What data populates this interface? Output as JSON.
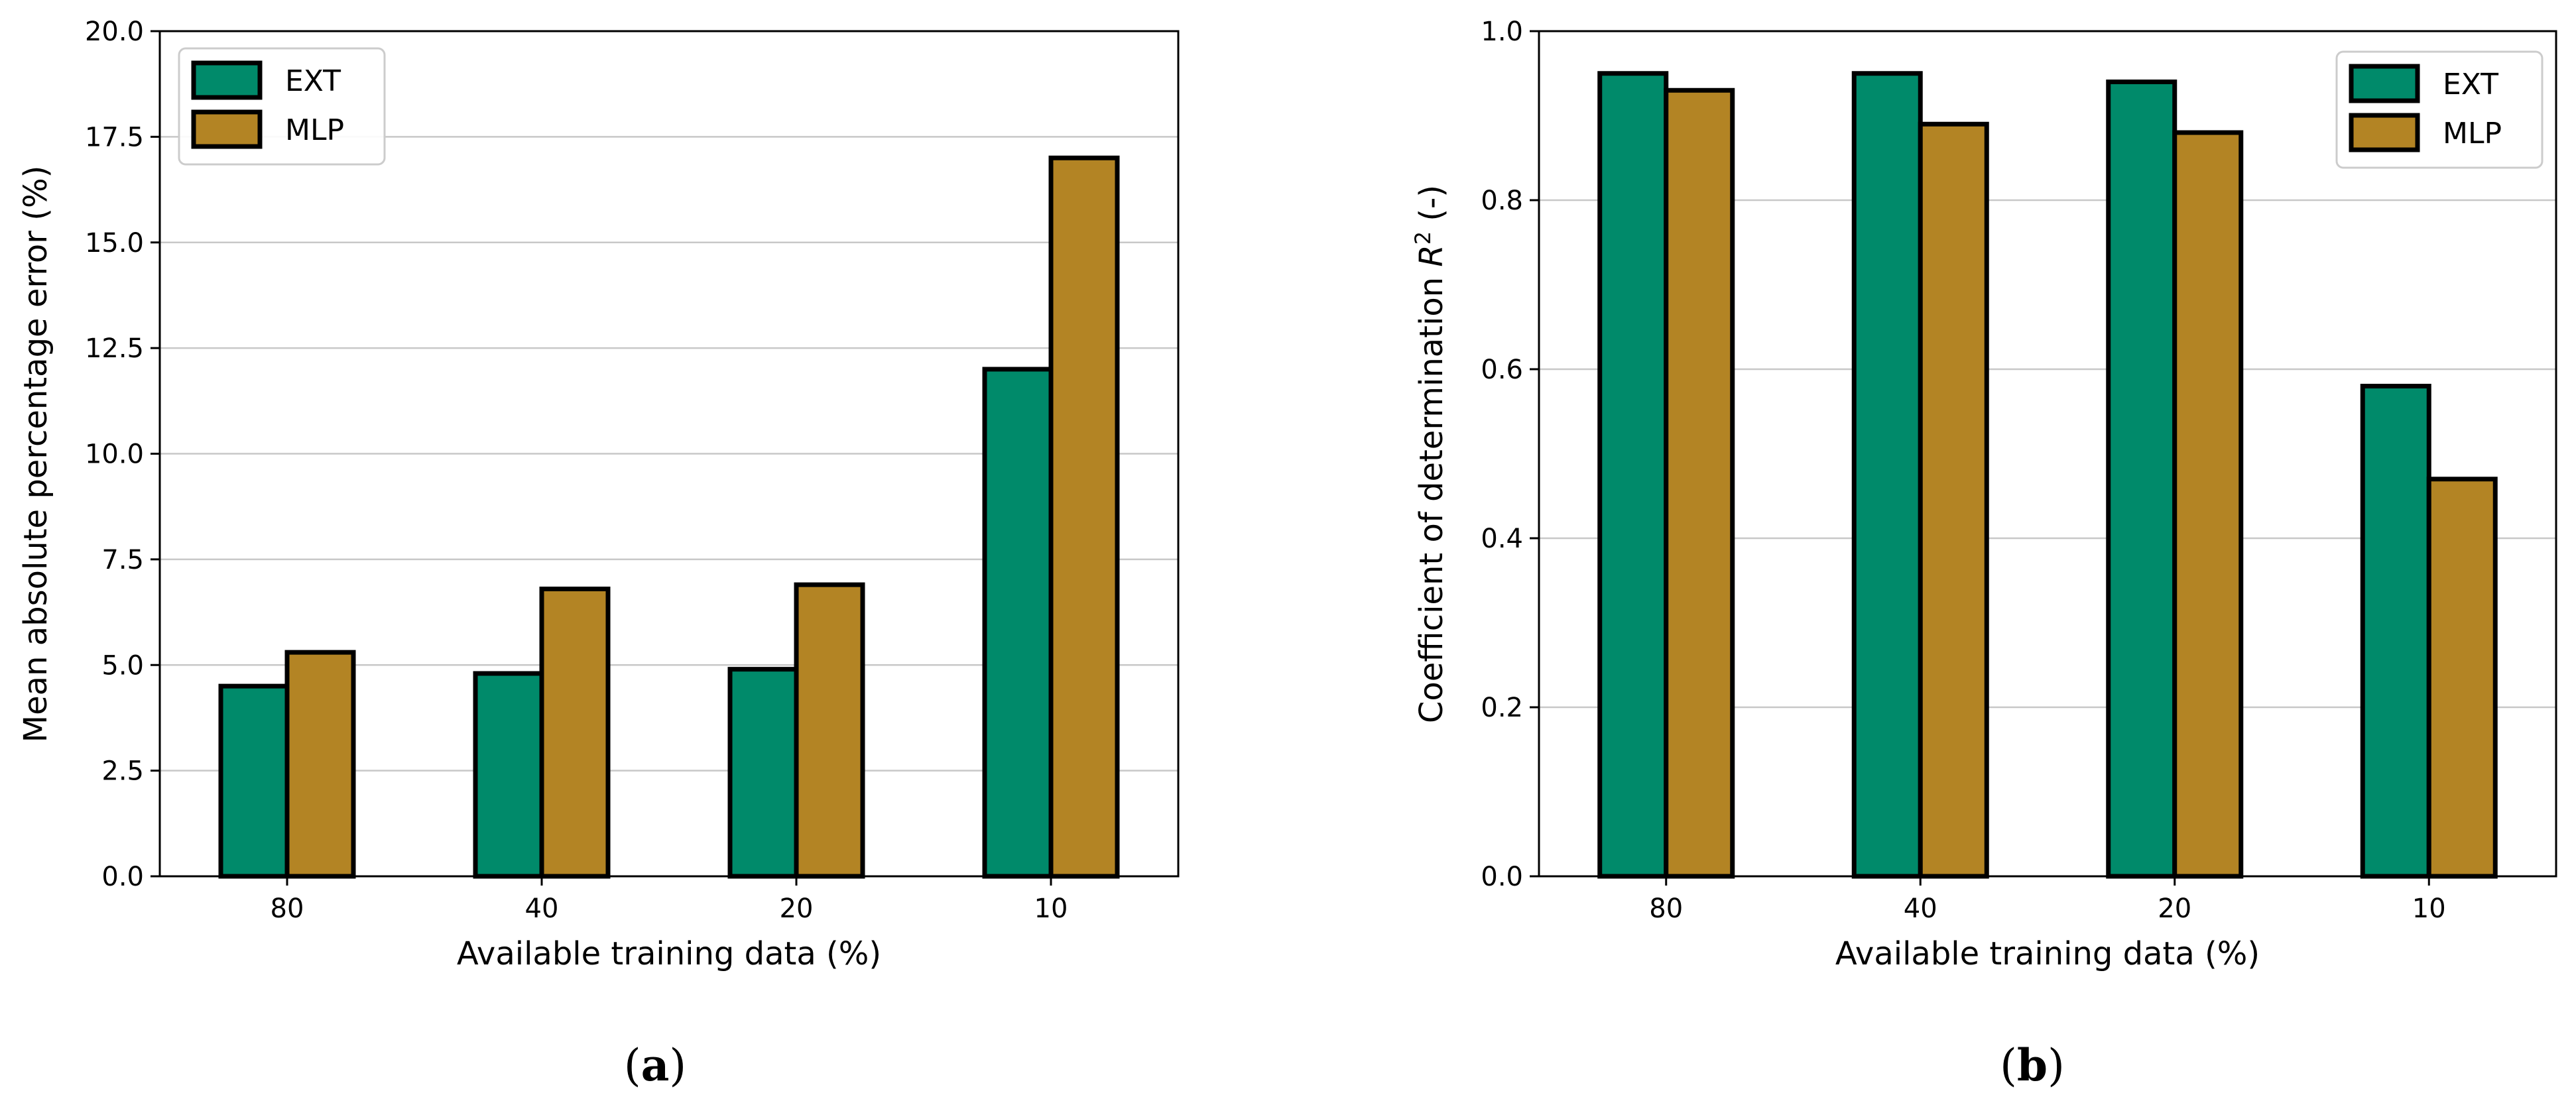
{
  "colors": {
    "EXT": "#008a6a",
    "MLP": "#b38424",
    "grid": "#c8c8c8",
    "edge": "#000000"
  },
  "chart_data": [
    {
      "type": "bar",
      "panel": {
        "open": "(",
        "letter": "a",
        "close": ")"
      },
      "categories": [
        "80",
        "40",
        "20",
        "10"
      ],
      "series": [
        {
          "name": "EXT",
          "values": [
            4.5,
            4.8,
            4.9,
            12.0
          ]
        },
        {
          "name": "MLP",
          "values": [
            5.3,
            6.8,
            6.9,
            17.0
          ]
        }
      ],
      "xlabel": "Available training data (%)",
      "ylabel": "Mean absolute percentage error (%)",
      "ylim": [
        0,
        20
      ],
      "yticks": [
        0,
        2.5,
        5,
        7.5,
        10,
        12.5,
        15,
        17.5,
        20
      ],
      "ytick_labels": [
        "0.0",
        "2.5",
        "5.0",
        "7.5",
        "10.0",
        "12.5",
        "15.0",
        "17.5",
        "20.0"
      ],
      "grid": "horizontal",
      "legend": "top-left"
    },
    {
      "type": "bar",
      "panel": {
        "open": "(",
        "letter": "b",
        "close": ")"
      },
      "categories": [
        "80",
        "40",
        "20",
        "10"
      ],
      "series": [
        {
          "name": "EXT",
          "values": [
            0.95,
            0.95,
            0.94,
            0.58
          ]
        },
        {
          "name": "MLP",
          "values": [
            0.93,
            0.89,
            0.88,
            0.47
          ]
        }
      ],
      "xlabel": "Available training data (%)",
      "ylabel": "Coefficient of determination R² (-)",
      "ylabel_parts": {
        "prefix": "Coefficient of determination ",
        "var": "R",
        "sup": "2",
        "suffix": " (-)"
      },
      "ylim": [
        0,
        1.0
      ],
      "yticks": [
        0,
        0.2,
        0.4,
        0.6,
        0.8,
        1.0
      ],
      "ytick_labels": [
        "0.0",
        "0.2",
        "0.4",
        "0.6",
        "0.8",
        "1.0"
      ],
      "grid": "horizontal",
      "legend": "top-right"
    }
  ]
}
